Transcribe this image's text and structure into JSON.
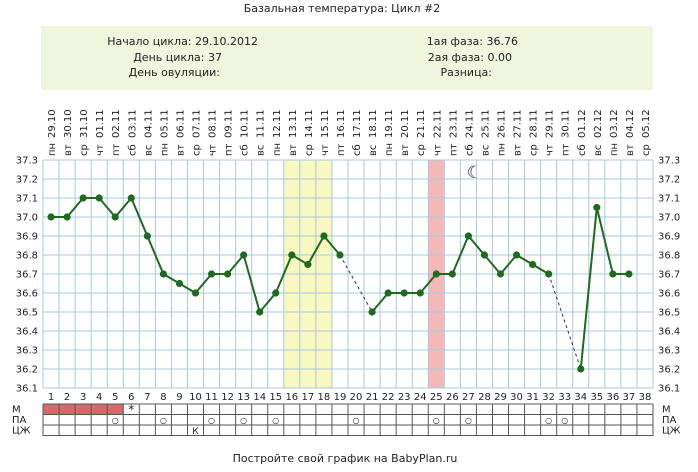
{
  "title": "Базальная температура: Цикл #2",
  "info": {
    "left_labels": [
      "Начало цикла: 29.10.2012",
      "День цикла: 37",
      "День овуляции:"
    ],
    "right_labels": [
      "1ая фаза: 36.76",
      "2ая фаза: 0.00",
      "Разница:"
    ]
  },
  "footer": "Постройте свой график на BabyPlan.ru",
  "colors": {
    "line": "#1e6a1e",
    "grid": "#a8c8e0",
    "info_bg": "#eef7dd",
    "highlight_yellow": "#f8f8c0",
    "highlight_red": "#f5b8b8",
    "mens": "#d46a6a",
    "marker": "#e07070"
  },
  "chart_data": {
    "type": "line",
    "dates": [
      "29.10",
      "30.10",
      "31.10",
      "01.11",
      "02.11",
      "03.11",
      "04.11",
      "05.11",
      "06.11",
      "07.11",
      "08.11",
      "09.11",
      "10.11",
      "11.11",
      "12.11",
      "13.11",
      "14.11",
      "15.11",
      "16.11",
      "17.11",
      "18.11",
      "19.11",
      "20.11",
      "21.11",
      "22.11",
      "23.11",
      "24.11",
      "25.11",
      "26.11",
      "27.11",
      "28.11",
      "29.11",
      "30.11",
      "01.12",
      "02.12",
      "03.12",
      "04.12",
      "05.12"
    ],
    "weekdays": [
      "пн",
      "вт",
      "ср",
      "чт",
      "пт",
      "сб",
      "вс",
      "пн",
      "вт",
      "ср",
      "чт",
      "пт",
      "сб",
      "вс",
      "пн",
      "вт",
      "ср",
      "чт",
      "пт",
      "сб",
      "вс",
      "пн",
      "вт",
      "ср",
      "чт",
      "пт",
      "сб",
      "вс",
      "пн",
      "вт",
      "ср",
      "чт",
      "пт",
      "сб",
      "вс",
      "пн",
      "вт",
      "ср"
    ],
    "days": [
      1,
      2,
      3,
      4,
      5,
      6,
      7,
      8,
      9,
      10,
      11,
      12,
      13,
      14,
      15,
      16,
      17,
      18,
      19,
      20,
      21,
      22,
      23,
      24,
      25,
      26,
      27,
      28,
      29,
      30,
      31,
      32,
      33,
      34,
      35,
      36,
      37,
      38
    ],
    "temperatures": [
      37.0,
      37.0,
      37.1,
      37.1,
      37.0,
      37.1,
      36.9,
      36.7,
      36.65,
      36.6,
      36.7,
      36.7,
      36.8,
      36.5,
      36.6,
      36.8,
      36.75,
      36.9,
      36.8,
      null,
      36.5,
      36.6,
      36.6,
      36.6,
      36.7,
      36.7,
      36.9,
      36.8,
      36.7,
      36.8,
      36.75,
      36.7,
      null,
      36.2,
      37.05,
      36.7,
      36.7,
      null
    ],
    "dashed_gaps": [
      [
        19,
        21
      ],
      [
        32,
        34
      ]
    ],
    "y_ticks": [
      "36.1",
      "36.2",
      "36.3",
      "36.4",
      "36.5",
      "36.6",
      "36.7",
      "36.8",
      "36.9",
      "37.0",
      "37.1",
      "37.2",
      "37.3"
    ],
    "ylim": [
      36.1,
      37.3
    ],
    "highlight_yellow_days": [
      16,
      18
    ],
    "highlight_red_day": 25,
    "moon_day": 27,
    "rows": {
      "labels": [
        "М",
        "ПА",
        "ЦЖ"
      ],
      "mens_days": [
        1,
        5
      ],
      "mens_star_day": 6,
      "pa_days": [
        5,
        8,
        11,
        13,
        15,
        20,
        25,
        27,
        32,
        33
      ],
      "pa_symbol": "○",
      "star_symbol": "*",
      "cz_marks": [
        {
          "day": 10,
          "text": "К"
        }
      ]
    }
  }
}
